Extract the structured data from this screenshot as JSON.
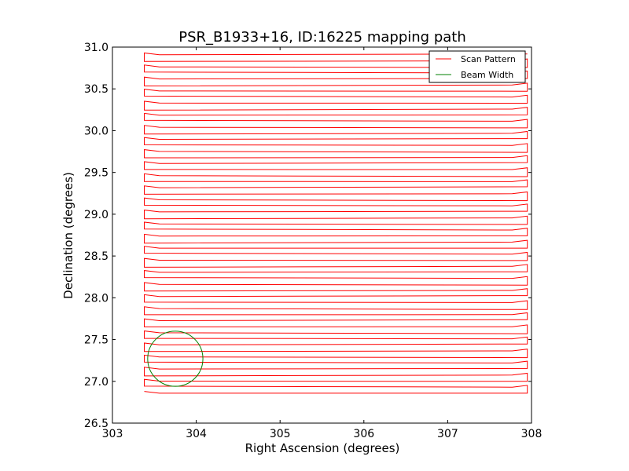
{
  "chart_data": {
    "type": "line",
    "title": "PSR_B1933+16, ID:16225 mapping path",
    "xlabel": "Right Ascension (degrees)",
    "ylabel": "Declination (degrees)",
    "xlim": [
      303,
      308
    ],
    "ylim": [
      26.5,
      31.0
    ],
    "xticks": [
      303,
      304,
      305,
      306,
      307,
      308
    ],
    "xtick_labels": [
      "303",
      "304",
      "305",
      "306",
      "307",
      "308"
    ],
    "yticks": [
      26.5,
      27.0,
      27.5,
      28.0,
      28.5,
      29.0,
      29.5,
      30.0,
      30.5,
      31.0
    ],
    "ytick_labels": [
      "26.5",
      "27.0",
      "27.5",
      "28.0",
      "28.5",
      "29.0",
      "29.5",
      "30.0",
      "30.5",
      "31.0"
    ],
    "grid": false,
    "legend": {
      "position": "top-right",
      "entries": [
        {
          "label": "Scan Pattern",
          "color": "#ff0000"
        },
        {
          "label": "Beam Width",
          "color": "#008000"
        }
      ]
    },
    "series": [
      {
        "name": "Scan Pattern",
        "color": "#ff0000",
        "ra_min": 303.38,
        "ra_max": 307.95,
        "dec_start": 26.88,
        "dec_end": 30.93,
        "legs": 57
      },
      {
        "name": "Beam Width",
        "color": "#008000",
        "center": [
          303.75,
          27.27
        ],
        "radius_dec": 0.33
      }
    ]
  }
}
